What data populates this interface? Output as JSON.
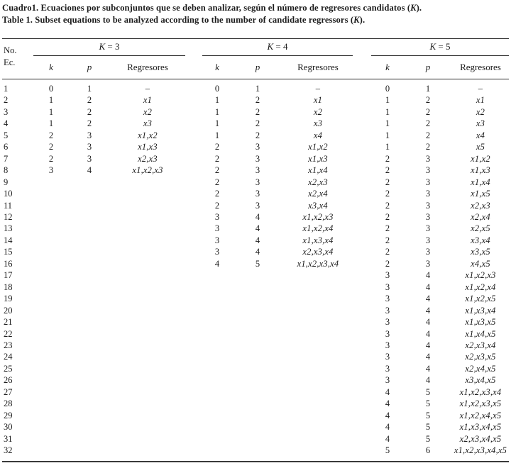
{
  "colors": {
    "background": "#ffffff",
    "ink": "#1c1c1c",
    "rule": "#2b2b2b"
  },
  "caption": {
    "es": {
      "before": "Cuadro1. Ecuaciones por subconjuntos que se deben analizar, según el número de regresores candidatos (",
      "symbol": "K",
      "after": ")."
    },
    "en": {
      "before": "Table 1. Subset equations to be analyzed according to the number of candidate regressors (",
      "symbol": "K",
      "after": ")."
    }
  },
  "table": {
    "corner": {
      "line1": "No.",
      "line2": "Ec."
    },
    "groups": [
      {
        "symbol": "K",
        "eq": " = 3",
        "sub": {
          "k": "k",
          "p": "p",
          "reg": "Regresores"
        }
      },
      {
        "symbol": "K",
        "eq": " = 4",
        "sub": {
          "k": "k",
          "p": "p",
          "reg": "Regresores"
        }
      },
      {
        "symbol": "K",
        "eq": " = 5",
        "sub": {
          "k": "k",
          "p": "p",
          "reg": "Regresores"
        }
      }
    ],
    "rows": [
      {
        "no": "1",
        "g3": [
          "0",
          "1",
          "–"
        ],
        "g4": [
          "0",
          "1",
          "–"
        ],
        "g5": [
          "0",
          "1",
          "–"
        ]
      },
      {
        "no": "2",
        "g3": [
          "1",
          "2",
          "x1"
        ],
        "g4": [
          "1",
          "2",
          "x1"
        ],
        "g5": [
          "1",
          "2",
          "x1"
        ]
      },
      {
        "no": "3",
        "g3": [
          "1",
          "2",
          "x2"
        ],
        "g4": [
          "1",
          "2",
          "x2"
        ],
        "g5": [
          "1",
          "2",
          "x2"
        ]
      },
      {
        "no": "4",
        "g3": [
          "1",
          "2",
          "x3"
        ],
        "g4": [
          "1",
          "2",
          "x3"
        ],
        "g5": [
          "1",
          "2",
          "x3"
        ]
      },
      {
        "no": "5",
        "g3": [
          "2",
          "3",
          "x1,x2"
        ],
        "g4": [
          "1",
          "2",
          "x4"
        ],
        "g5": [
          "1",
          "2",
          "x4"
        ]
      },
      {
        "no": "6",
        "g3": [
          "2",
          "3",
          "x1,x3"
        ],
        "g4": [
          "2",
          "3",
          "x1,x2"
        ],
        "g5": [
          "1",
          "2",
          "x5"
        ]
      },
      {
        "no": "7",
        "g3": [
          "2",
          "3",
          "x2,x3"
        ],
        "g4": [
          "2",
          "3",
          "x1,x3"
        ],
        "g5": [
          "2",
          "3",
          "x1,x2"
        ]
      },
      {
        "no": "8",
        "g3": [
          "3",
          "4",
          "x1,x2,x3"
        ],
        "g4": [
          "2",
          "3",
          "x1,x4"
        ],
        "g5": [
          "2",
          "3",
          "x1,x3"
        ]
      },
      {
        "no": "9",
        "g4": [
          "2",
          "3",
          "x2,x3"
        ],
        "g5": [
          "2",
          "3",
          "x1,x4"
        ]
      },
      {
        "no": "10",
        "g4": [
          "2",
          "3",
          "x2,x4"
        ],
        "g5": [
          "2",
          "3",
          "x1,x5"
        ]
      },
      {
        "no": "11",
        "g4": [
          "2",
          "3",
          "x3,x4"
        ],
        "g5": [
          "2",
          "3",
          "x2,x3"
        ]
      },
      {
        "no": "12",
        "g4": [
          "3",
          "4",
          "x1,x2,x3"
        ],
        "g5": [
          "2",
          "3",
          "x2,x4"
        ]
      },
      {
        "no": "13",
        "g4": [
          "3",
          "4",
          "x1,x2,x4"
        ],
        "g5": [
          "2",
          "3",
          "x2,x5"
        ]
      },
      {
        "no": "14",
        "g4": [
          "3",
          "4",
          "x1,x3,x4"
        ],
        "g5": [
          "2",
          "3",
          "x3,x4"
        ]
      },
      {
        "no": "15",
        "g4": [
          "3",
          "4",
          "x2,x3,x4"
        ],
        "g5": [
          "2",
          "3",
          "x3,x5"
        ]
      },
      {
        "no": "16",
        "g4": [
          "4",
          "5",
          "x1,x2,x3,x4"
        ],
        "g5": [
          "2",
          "3",
          "x4,x5"
        ]
      },
      {
        "no": "17",
        "g5": [
          "3",
          "4",
          "x1,x2,x3"
        ]
      },
      {
        "no": "18",
        "g5": [
          "3",
          "4",
          "x1,x2,x4"
        ]
      },
      {
        "no": "19",
        "g5": [
          "3",
          "4",
          "x1,x2,x5"
        ]
      },
      {
        "no": "20",
        "g5": [
          "3",
          "4",
          "x1,x3,x4"
        ]
      },
      {
        "no": "21",
        "g5": [
          "3",
          "4",
          "x1,x3,x5"
        ]
      },
      {
        "no": "22",
        "g5": [
          "3",
          "4",
          "x1,x4,x5"
        ]
      },
      {
        "no": "23",
        "g5": [
          "3",
          "4",
          "x2,x3,x4"
        ]
      },
      {
        "no": "24",
        "g5": [
          "3",
          "4",
          "x2,x3,x5"
        ]
      },
      {
        "no": "25",
        "g5": [
          "3",
          "4",
          "x2,x4,x5"
        ]
      },
      {
        "no": "26",
        "g5": [
          "3",
          "4",
          "x3,x4,x5"
        ]
      },
      {
        "no": "27",
        "g5": [
          "4",
          "5",
          "x1,x2,x3,x4"
        ]
      },
      {
        "no": "28",
        "g5": [
          "4",
          "5",
          "x1,x2,x3,x5"
        ]
      },
      {
        "no": "29",
        "g5": [
          "4",
          "5",
          "x1,x2,x4,x5"
        ]
      },
      {
        "no": "30",
        "g5": [
          "4",
          "5",
          "x1,x3,x4,x5"
        ]
      },
      {
        "no": "31",
        "g5": [
          "4",
          "5",
          "x2,x3,x4,x5"
        ]
      },
      {
        "no": "32",
        "g5": [
          "5",
          "6",
          "x1,x2,x3,x4,x5"
        ]
      }
    ]
  }
}
